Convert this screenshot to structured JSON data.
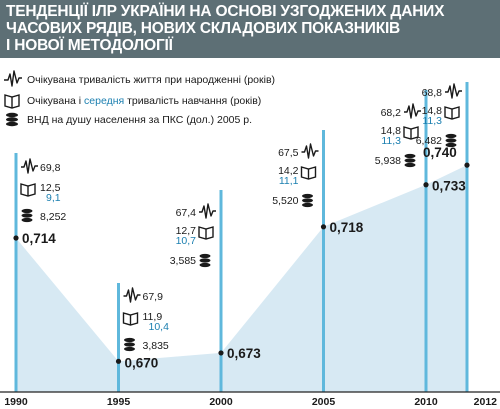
{
  "chart_data": {
    "type": "area",
    "title_lines": [
      "ТЕНДЕНЦІЇ ІЛР УКРАЇНИ НА ОСНОВІ УЗГОДЖЕНИХ ДАНИХ",
      "ЧАСОВИХ РЯДІВ, НОВИХ СКЛАДОВИХ ПОКАЗНИКІВ",
      "І НОВОЇ МЕТОДОЛОГІЇ"
    ],
    "legend": {
      "life": "Очікувана тривалість життя при народженні (років)",
      "edu_prefix": "Очікувана і",
      "edu_accent": "середня",
      "edu_suffix": "тривалість навчання (років)",
      "gni": "ВНД на душу населення за ПКС (дол.) 2005 р."
    },
    "x": [
      "1990",
      "1995",
      "2000",
      "2005",
      "2010",
      "2012"
    ],
    "hdi": [
      "0,714",
      "0,670",
      "0,673",
      "0,718",
      "0,733",
      "0,740"
    ],
    "hdi_values": [
      0.714,
      0.67,
      0.673,
      0.718,
      0.733,
      0.74
    ],
    "life_expectancy": [
      "69,8",
      "67,9",
      "67,4",
      "67,5",
      "68,2",
      "68,8"
    ],
    "expected_schooling": [
      "12,5",
      "11,9",
      "12,7",
      "14,2",
      "14,8",
      "14,8"
    ],
    "mean_schooling": [
      "9,1",
      "10,4",
      "10,7",
      "11,1",
      "11,3",
      "11,3"
    ],
    "gni_per_capita": [
      "8,252",
      "3,835",
      "3,585",
      "5,520",
      "5,938",
      "6,482"
    ],
    "colors": {
      "title_bg": "#5d6f75",
      "bar": "#5fb8dc",
      "area": "#d7e9f3",
      "accent": "#1b7fb0",
      "axis": "#222222"
    }
  }
}
